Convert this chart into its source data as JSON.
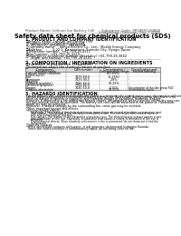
{
  "background_color": "#ffffff",
  "header_left": "Product Name: Lithium Ion Battery Cell",
  "header_right_line1": "Substance Code: 9R18650 00816",
  "header_right_line2": "Established / Revision: Dec.7.2009",
  "title": "Safety data sheet for chemical products (SDS)",
  "section1_title": "1. PRODUCT AND COMPANY IDENTIFICATION",
  "section1_lines": [
    "・Product name: Lithium Ion Battery Cell",
    "・Product code: Cylindrical-type cell",
    "    9R18650U, 9R18650L, 9R18650A",
    "・Company name:    Sanyo Electric Co., Ltd.,  Mobile Energy Company",
    "・Address:          2-22-1  Kaminaizen, Sumoto City, Hyogo, Japan",
    "・Telephone number:  +81-799-26-4111",
    "・Fax number:  +81-799-26-4129",
    "・Emergency telephone number (Weekday) +81-799-26-3842",
    "    (Night and holiday) +81-799-26-4101"
  ],
  "section2_title": "2. COMPOSITION / INFORMATION ON INGREDIENTS",
  "section2_sub": "・Substance or preparation: Preparation",
  "section2_sub2": "・Information about the chemical nature of product:",
  "table_col_headers1": [
    "Component / General name",
    "CAS number",
    "Concentration / Concentration range",
    "Classification and hazard labeling"
  ],
  "table_rows": [
    [
      "Lithium nickel cobaltate",
      "-",
      "(30-60%)",
      "-"
    ],
    [
      "(LiNixCoyO2)",
      "",
      "",
      ""
    ],
    [
      "Iron",
      "7439-89-6",
      "(5-25%)",
      "-"
    ],
    [
      "Aluminum",
      "7429-90-5",
      "2-8%",
      "-"
    ],
    [
      "Graphite",
      "",
      "",
      ""
    ],
    [
      "(Natural graphite)",
      "7782-42-5",
      "10-25%",
      "-"
    ],
    [
      "(Artificial graphite)",
      "7782-42-5",
      "",
      ""
    ],
    [
      "Copper",
      "7440-50-8",
      "5-15%",
      "Sensitization of the skin group R42"
    ],
    [
      "Organic electrolyte",
      "-",
      "10-20%",
      "Inflammatory liquid"
    ]
  ],
  "section3_title": "3. HAZARDS IDENTIFICATION",
  "section3_para": [
    "For the battery cell, chemical materials are stored in a hermetically sealed metal case, designed to withstand",
    "temperatures and pressures encountered during normal use. As a result, during normal use, there is no",
    "physical danger of ignition or explosion and therefore danger of hazardous materials leakage.",
    "However, if exposed to a fire added mechanical shocks, decomposed, arsenic electric valves dry may use.",
    "the gas release cannot be operated. The battery cell case will be breached of fire patterns. Hazardous",
    "materials may be released.",
    "Moreover, if heated strongly by the surrounding fire, some gas may be emitted."
  ],
  "section3_bullet1": "・Most important hazard and effects:",
  "section3_human": "Human health effects:",
  "section3_human_lines": [
    "Inhalation: The release of the electrolyte has an anaesthesia action and stimulates a respiratory tract.",
    "Skin contact: The release of the electrolyte stimulates a skin. The electrolyte skin contact causes a",
    "sore and stimulation on the skin.",
    "Eye contact: The release of the electrolyte stimulates eyes. The electrolyte eye contact causes a sore",
    "and stimulation on the eye. Especially, a substance that causes a strong inflammation of the eye is",
    "contained.",
    "Environmental effects: Since a battery cell remains in the environment, do not throw out it into the",
    "environment."
  ],
  "section3_bullet2": "・Specific hazards:",
  "section3_specific": [
    "If the electrolyte contacts with water, it will generate detrimental hydrogen fluoride.",
    "Since the said electrolyte is inflammatory liquid, do not bring close to fire."
  ]
}
